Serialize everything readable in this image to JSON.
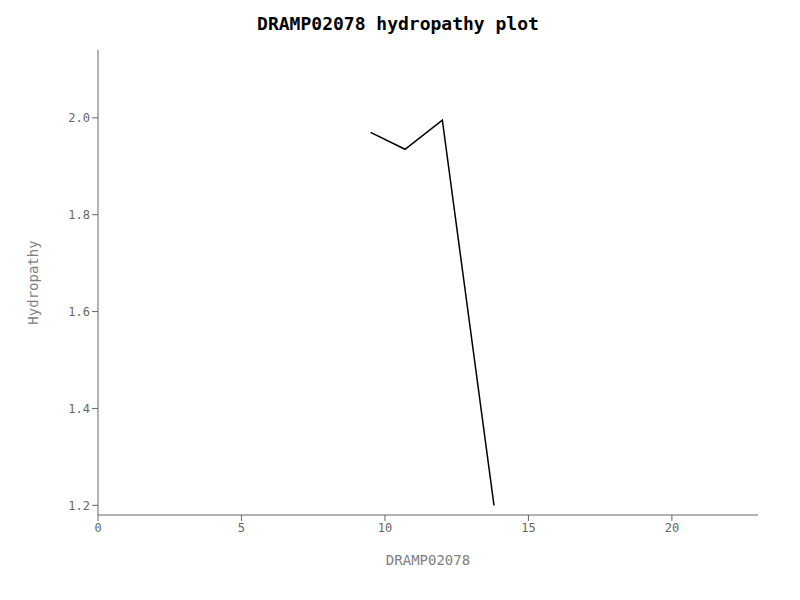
{
  "chart_data": {
    "type": "line",
    "title": "DRAMP02078 hydropathy plot",
    "xlabel": "DRAMP02078",
    "ylabel": "Hydropathy",
    "x": [
      9.5,
      10.7,
      12.0,
      13.8
    ],
    "values": [
      1.97,
      1.935,
      1.995,
      1.2
    ],
    "color": "#000000",
    "xlim": [
      0,
      23
    ],
    "ylim": [
      1.18,
      2.14
    ],
    "xticks": [
      0,
      5,
      10,
      15,
      20
    ],
    "yticks": [
      1.2,
      1.4,
      1.6,
      1.8,
      {
        "value": 2.0,
        "label": "2.0"
      }
    ],
    "grid": false
  }
}
